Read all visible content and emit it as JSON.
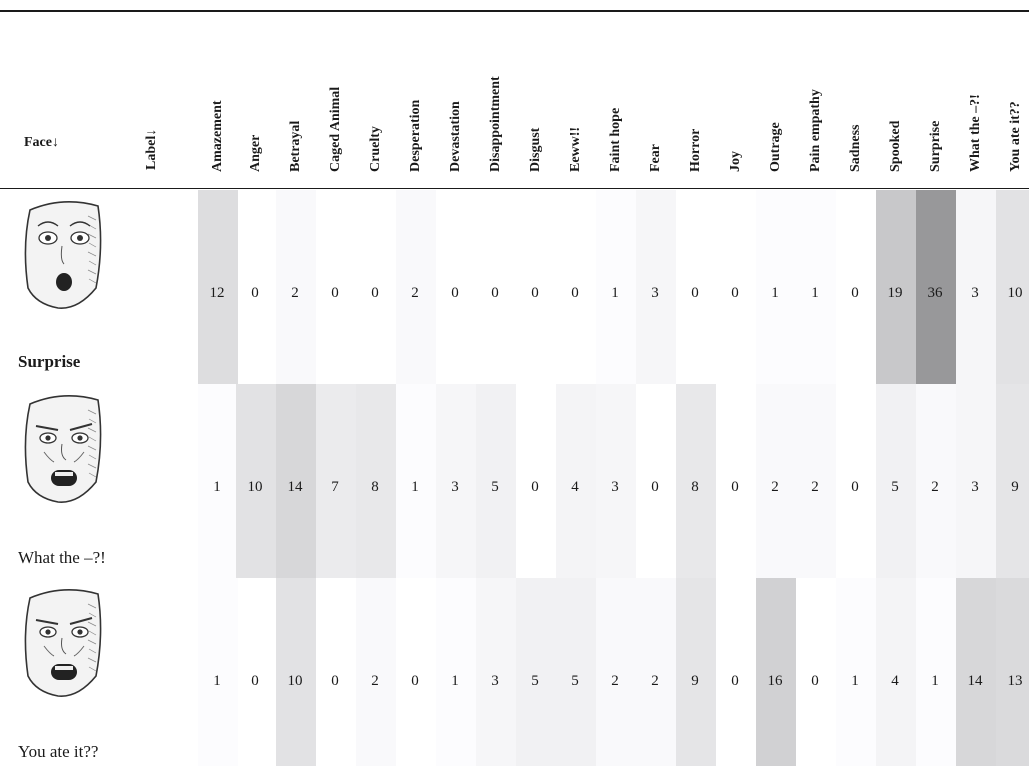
{
  "header": {
    "face": "Face↓",
    "label": "Label↓",
    "columns": [
      "Amazement",
      "Anger",
      "Betrayal",
      "Caged Animal",
      "Cruelty",
      "Desperation",
      "Devastation",
      "Disappointment",
      "Disgust",
      "Eeww!!",
      "Faint hope",
      "Fear",
      "Horror",
      "Joy",
      "Outrage",
      "Pain empathy",
      "Sadness",
      "Spooked",
      "Surprise",
      "What the –?!",
      "You ate it??"
    ]
  },
  "rows": [
    {
      "label": "Surprise",
      "label_bold": true,
      "face_icon": "surprised-face-icon",
      "values": [
        12,
        0,
        2,
        0,
        0,
        2,
        0,
        0,
        0,
        0,
        1,
        3,
        0,
        0,
        1,
        1,
        0,
        19,
        36,
        3,
        10
      ]
    },
    {
      "label": "What the –?!",
      "label_bold": false,
      "face_icon": "shocked-angry-face-icon",
      "values": [
        1,
        10,
        14,
        7,
        8,
        1,
        3,
        5,
        0,
        4,
        3,
        0,
        8,
        0,
        2,
        2,
        0,
        5,
        2,
        3,
        9
      ]
    },
    {
      "label": "You ate it??",
      "label_bold": false,
      "face_icon": "disgusted-face-icon",
      "values": [
        1,
        0,
        10,
        0,
        2,
        0,
        1,
        3,
        5,
        5,
        2,
        2,
        9,
        0,
        16,
        0,
        1,
        4,
        1,
        14,
        13
      ]
    }
  ]
}
